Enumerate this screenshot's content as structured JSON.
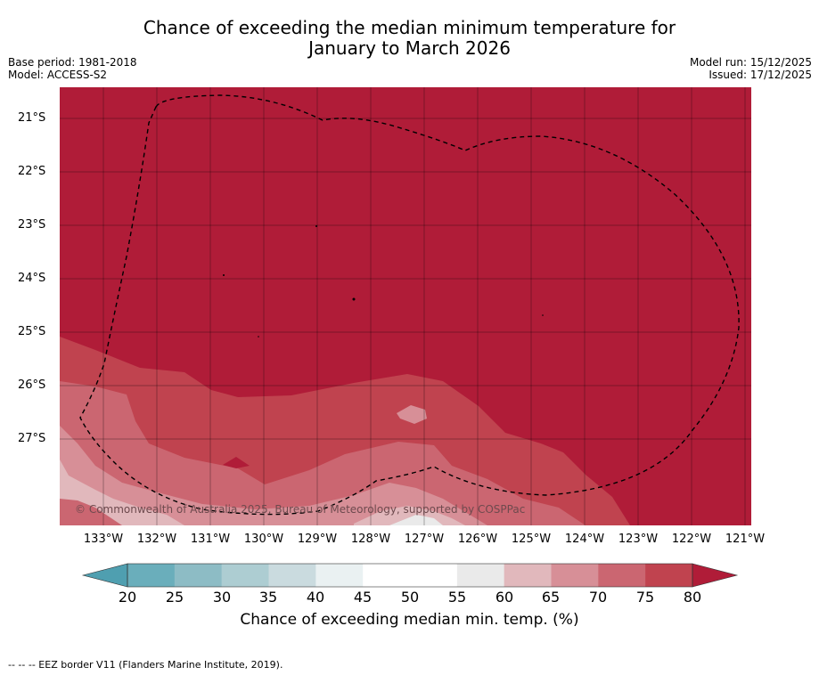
{
  "title": {
    "line1": "Chance of exceeding the median minimum temperature for",
    "line2": "January to March 2026"
  },
  "meta": {
    "base_period": "Base period: 1981-2018",
    "model": "Model: ACCESS-S2",
    "model_run": "Model run: 15/12/2025",
    "issued": "Issued: 17/12/2025"
  },
  "map": {
    "copyright": "© Commonwealth of Australia 2025, Bureau of Meteorology, supported by COSPPac",
    "lat_labels": [
      "21°S",
      "22°S",
      "23°S",
      "24°S",
      "25°S",
      "26°S",
      "27°S"
    ],
    "lon_labels": [
      "133°W",
      "132°W",
      "131°W",
      "130°W",
      "129°W",
      "128°W",
      "127°W",
      "126°W",
      "125°W",
      "124°W",
      "123°W",
      "122°W",
      "121°W"
    ],
    "colors": {
      "above_80": "#b01c38",
      "c75_80": "#c0434f",
      "c70_75": "#cb6671",
      "c65_70": "#d78f97",
      "c60_65": "#e1b8bc",
      "c55_60": "#eaeaea"
    }
  },
  "colorbar": {
    "ticks": [
      "20",
      "25",
      "30",
      "35",
      "40",
      "45",
      "50",
      "55",
      "60",
      "65",
      "70",
      "75",
      "80"
    ],
    "label": "Chance of exceeding median min. temp. (%)",
    "colors": [
      "#6aaebb",
      "#8dbcc5",
      "#adcdd2",
      "#cadbdf",
      "#eaf1f2",
      "#ffffff",
      "#ffffff",
      "#eaeaea",
      "#e1b8bc",
      "#d78f97",
      "#cb6671",
      "#c0434f"
    ],
    "below_color": "#4f9fb0",
    "above_color": "#b01c38"
  },
  "footnote": "--  --  -- EEZ border V11 (Flanders Marine Institute, 2019)."
}
